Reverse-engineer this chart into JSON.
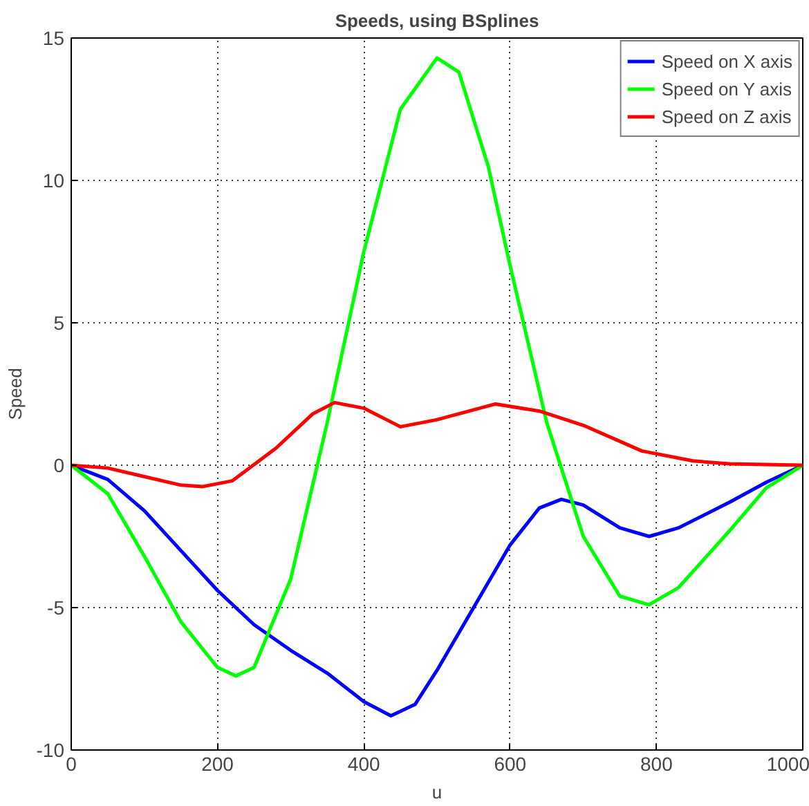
{
  "chart_data": {
    "type": "line",
    "title": "Speeds, using BSplines",
    "xlabel": "u",
    "ylabel": "Speed",
    "xlim": [
      0,
      1000
    ],
    "ylim": [
      -10,
      15
    ],
    "xticks": [
      0,
      200,
      400,
      600,
      800,
      1000
    ],
    "yticks": [
      -10,
      -5,
      0,
      5,
      10,
      15
    ],
    "grid": true,
    "legend": "top right",
    "line_style": "solid",
    "series": [
      {
        "name": "Speed on X axis",
        "color": "#0000ff",
        "x": [
          0,
          50,
          100,
          150,
          200,
          250,
          300,
          350,
          400,
          437,
          470,
          500,
          550,
          600,
          640,
          670,
          700,
          750,
          790,
          830,
          900,
          950,
          1000
        ],
        "values": [
          0,
          -0.5,
          -1.6,
          -3.0,
          -4.4,
          -5.6,
          -6.5,
          -7.3,
          -8.3,
          -8.8,
          -8.4,
          -7.2,
          -5.0,
          -2.8,
          -1.5,
          -1.2,
          -1.4,
          -2.2,
          -2.5,
          -2.2,
          -1.3,
          -0.6,
          0
        ]
      },
      {
        "name": "Speed on Y axis",
        "color": "#00ff00",
        "x": [
          0,
          50,
          100,
          150,
          200,
          225,
          250,
          300,
          350,
          400,
          450,
          500,
          530,
          570,
          600,
          650,
          700,
          750,
          790,
          830,
          900,
          950,
          1000
        ],
        "values": [
          0,
          -1.0,
          -3.2,
          -5.5,
          -7.1,
          -7.4,
          -7.1,
          -4.0,
          1.5,
          7.5,
          12.5,
          14.3,
          13.8,
          10.5,
          7,
          1.5,
          -2.5,
          -4.6,
          -4.9,
          -4.3,
          -2.3,
          -0.8,
          0
        ]
      },
      {
        "name": "Speed on Z axis",
        "color": "#ff0000",
        "x": [
          0,
          50,
          100,
          150,
          180,
          220,
          280,
          330,
          360,
          400,
          450,
          500,
          580,
          640,
          700,
          780,
          850,
          900,
          1000
        ],
        "values": [
          0,
          -0.1,
          -0.4,
          -0.7,
          -0.75,
          -0.55,
          0.6,
          1.8,
          2.2,
          2.0,
          1.35,
          1.6,
          2.15,
          1.9,
          1.4,
          0.5,
          0.15,
          0.05,
          0
        ]
      }
    ]
  }
}
